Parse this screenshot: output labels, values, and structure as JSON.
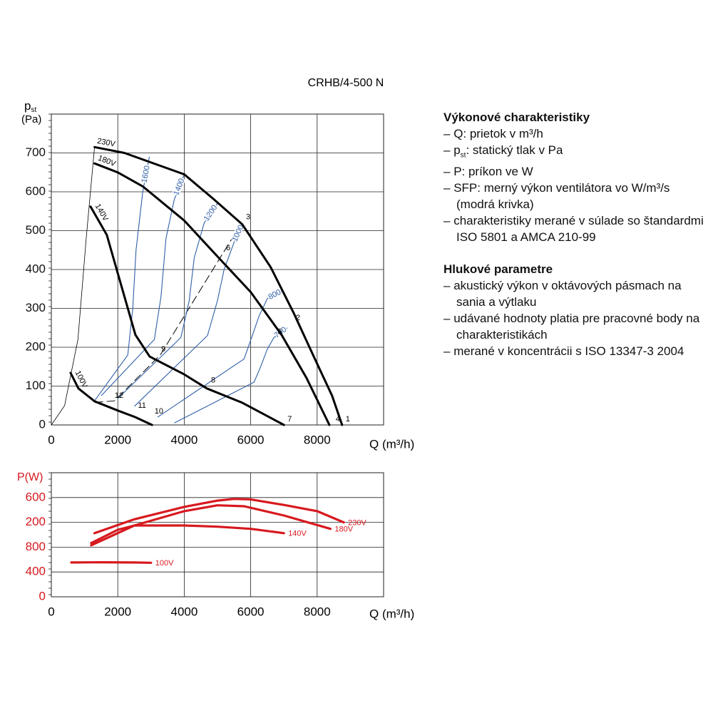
{
  "chart_data": [
    {
      "type": "line",
      "title": "CRHB/4-500 N",
      "ylabel": "p",
      "ylabel_sub": "st",
      "ylabel_unit": "(Pa)",
      "xlabel": "Q (m³/h)",
      "xlim": [
        0,
        10000
      ],
      "xticks": [
        0,
        2000,
        4000,
        6000,
        8000
      ],
      "ylim": [
        0,
        800
      ],
      "yticks": [
        0,
        100,
        200,
        300,
        400,
        500,
        600,
        700
      ],
      "grid": true,
      "series": [
        {
          "name": "230V",
          "color": "#000000",
          "x": [
            1300,
            2200,
            4000,
            4900,
            5750,
            6600,
            7300,
            7900,
            8450,
            8750
          ],
          "values": [
            715,
            700,
            645,
            580,
            516,
            406,
            287,
            176,
            75,
            0
          ]
        },
        {
          "name": "180V",
          "color": "#000000",
          "x": [
            1300,
            2000,
            2750,
            4000,
            4900,
            6000,
            6930,
            7680,
            8370
          ],
          "values": [
            673,
            650,
            614,
            526,
            443,
            342,
            232,
            121,
            0
          ]
        },
        {
          "name": "140V",
          "color": "#000000",
          "x": [
            1180,
            1670,
            2100,
            2530,
            2960,
            4000,
            4680,
            5750,
            7000
          ],
          "values": [
            562,
            489,
            360,
            232,
            176,
            130,
            94,
            57,
            0
          ]
        },
        {
          "name": "100V",
          "color": "#000000",
          "x": [
            580,
            815,
            1300,
            2000,
            2530,
            3030
          ],
          "values": [
            134,
            94,
            61,
            37,
            20,
            0
          ]
        }
      ],
      "sfp_series": [
        {
          "name": "1600",
          "color": "#2f5fa8",
          "x": [
            1300,
            2300,
            2450,
            2550,
            2750,
            2950
          ],
          "values": [
            62,
            180,
            300,
            450,
            600,
            690
          ]
        },
        {
          "name": "1400",
          "color": "#2f5fa8",
          "x": [
            1500,
            3100,
            3300,
            3450,
            3700,
            4000
          ],
          "values": [
            75,
            220,
            330,
            480,
            580,
            645
          ]
        },
        {
          "name": "1200",
          "color": "#2f5fa8",
          "x": [
            2000,
            3900,
            4150,
            4300,
            4600,
            5000
          ],
          "values": [
            68,
            225,
            320,
            430,
            520,
            570
          ]
        },
        {
          "name": "1000",
          "color": "#2f5fa8",
          "x": [
            2500,
            4700,
            5000,
            5200,
            5500,
            5750
          ],
          "values": [
            48,
            230,
            320,
            400,
            470,
            516
          ]
        },
        {
          "name": "800",
          "color": "#2f5fa8",
          "x": [
            3200,
            5800,
            6050,
            6250,
            6500,
            6950
          ],
          "values": [
            20,
            170,
            230,
            280,
            325,
            345
          ]
        },
        {
          "name": "700",
          "color": "#2f5fa8",
          "x": [
            3700,
            6100,
            6300,
            6500,
            6700,
            7100
          ],
          "values": [
            5,
            110,
            150,
            195,
            225,
            250
          ]
        }
      ],
      "system_curve": {
        "color": "#000000",
        "x": [
          0,
          400,
          800,
          1050,
          1300
        ],
        "values": [
          0,
          50,
          220,
          480,
          715
        ]
      },
      "dashed_line": {
        "color": "#000000",
        "x": [
          1300,
          1900,
          3280,
          5150,
          5750
        ],
        "values": [
          58,
          62,
          180,
          440,
          522
        ]
      },
      "points": [
        {
          "label": "1",
          "x": 8750,
          "y": 0
        },
        {
          "label": "2",
          "x": 7250,
          "y": 260
        },
        {
          "label": "3",
          "x": 5750,
          "y": 520
        },
        {
          "label": "4",
          "x": 8450,
          "y": 0
        },
        {
          "label": "5",
          "x": 6700,
          "y": 225
        },
        {
          "label": "6",
          "x": 5150,
          "y": 440
        },
        {
          "label": "7",
          "x": 7000,
          "y": 0
        },
        {
          "label": "8",
          "x": 4700,
          "y": 100
        },
        {
          "label": "9",
          "x": 3200,
          "y": 180
        },
        {
          "label": "10",
          "x": 3000,
          "y": 20
        },
        {
          "label": "11",
          "x": 2500,
          "y": 35
        },
        {
          "label": "12",
          "x": 1800,
          "y": 60
        }
      ]
    },
    {
      "type": "line",
      "ylabel": "P(W)",
      "xlabel": "Q (m³/h)",
      "axis_color": "#d7191f",
      "xlim": [
        0,
        10000
      ],
      "xticks": [
        0,
        2000,
        4000,
        6000,
        8000
      ],
      "ylim": [
        0,
        2000
      ],
      "yticks": [
        0,
        400,
        800,
        {
          "value": 1200,
          "label": "200"
        },
        {
          "value": 1600,
          "label": "600"
        }
      ],
      "grid": true,
      "series": [
        {
          "name": "230V",
          "color": "#d7191f",
          "x": [
            1300,
            2500,
            4000,
            5000,
            5500,
            6000,
            7000,
            8000,
            8800
          ],
          "values": [
            1025,
            1250,
            1450,
            1550,
            1578,
            1570,
            1480,
            1380,
            1200
          ]
        },
        {
          "name": "180V",
          "color": "#d7191f",
          "x": [
            1200,
            2500,
            4000,
            5000,
            5800,
            7000,
            8400
          ],
          "values": [
            830,
            1150,
            1380,
            1475,
            1460,
            1310,
            1095
          ]
        },
        {
          "name": "140V",
          "color": "#d7191f",
          "x": [
            1200,
            2000,
            2500,
            4000,
            5000,
            6000,
            7000
          ],
          "values": [
            865,
            1080,
            1150,
            1150,
            1130,
            1095,
            1025
          ]
        },
        {
          "name": "100V",
          "color": "#d7191f",
          "x": [
            600,
            1500,
            2500,
            3000
          ],
          "values": [
            553,
            556,
            553,
            548
          ]
        }
      ]
    }
  ],
  "notes": [
    {
      "heading": "Výkonové charakteristiky",
      "items": [
        "Q: prietok v m³/h",
        {
          "main": "p",
          "sub": "st",
          "rest": ": statický tlak v Pa"
        },
        "P: príkon ve W",
        "SFP: merný výkon ventilátora vo W/m³/s (modrá krivka)",
        "charakteristiky merané v súlade so štandardmi ISO 5801 a AMCA 210-99"
      ]
    },
    {
      "heading": "Hlukové parametre",
      "items": [
        "akustický výkon v oktávových pásmach na sania a výtlaku",
        "udávané hodnoty platia pre pracovné body na charakteristikách",
        "merané v koncentrácii s ISO 13347-3 2004"
      ]
    }
  ]
}
